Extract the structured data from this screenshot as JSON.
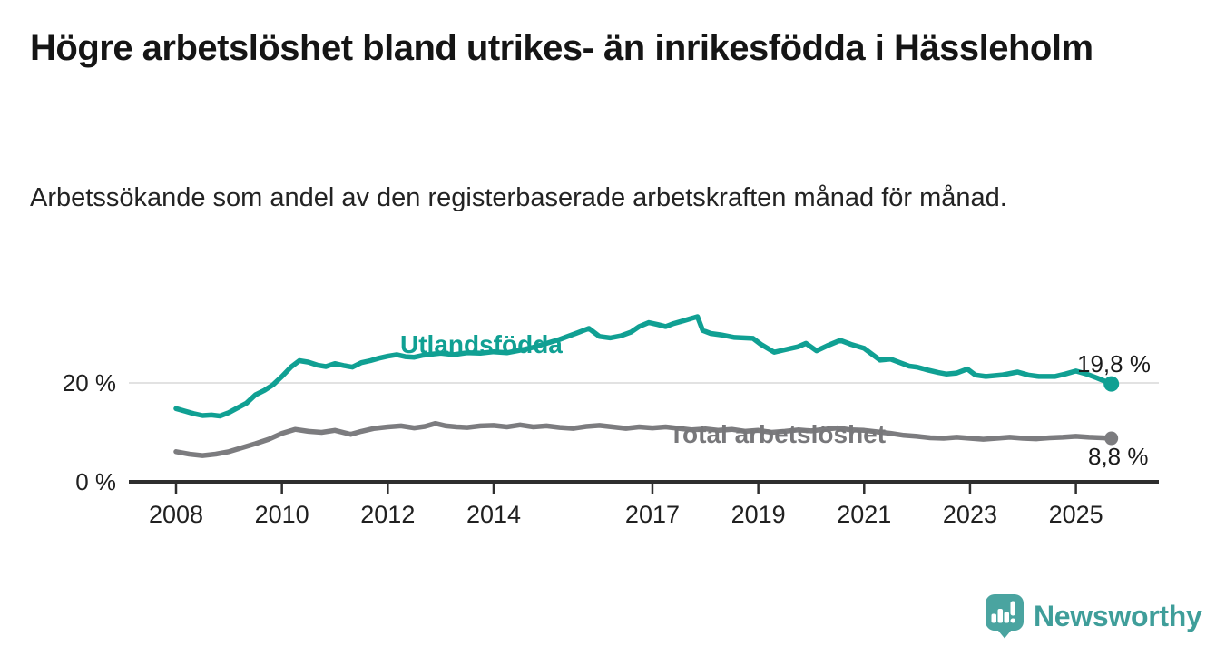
{
  "header": {
    "title": "Högre arbetslöshet bland utrikes- än inrikesfödda i Hässleholm",
    "subtitle": "Arbetssökande som andel av den registerbaserade arbetskraften månad för månad."
  },
  "chart_data": {
    "type": "line",
    "unit": "%",
    "title": "Högre arbetslöshet bland utrikes- än inrikesfödda i Hässleholm",
    "subtitle": "Arbetssökande som andel av den registerbaserade arbetskraften månad för månad.",
    "xlabel": "",
    "ylabel": "",
    "x_range": [
      2007.2,
      2026.5
    ],
    "ylim": [
      0,
      36
    ],
    "grid": "single horizontal gridline at 20 %",
    "legend_position": "inline labels next to lines",
    "x_ticks": [
      2008,
      2010,
      2012,
      2014,
      2017,
      2019,
      2021,
      2023,
      2025
    ],
    "y_ticks": [
      {
        "value": 0,
        "label": "0 %"
      },
      {
        "value": 20,
        "label": "20 %"
      }
    ],
    "axis_colors": {
      "axis_line": "#2e2e2e",
      "gridline": "#d9d9d9",
      "tick_text": "#202020"
    },
    "series": [
      {
        "name": "Utlandsfödda",
        "color": "#10a093",
        "end_value": 19.8,
        "end_label": "19,8 %",
        "points": [
          [
            2008.0,
            14.8
          ],
          [
            2008.17,
            14.3
          ],
          [
            2008.33,
            13.8
          ],
          [
            2008.5,
            13.4
          ],
          [
            2008.67,
            13.5
          ],
          [
            2008.83,
            13.3
          ],
          [
            2009.0,
            14.0
          ],
          [
            2009.17,
            15.0
          ],
          [
            2009.33,
            15.9
          ],
          [
            2009.5,
            17.6
          ],
          [
            2009.67,
            18.5
          ],
          [
            2009.83,
            19.6
          ],
          [
            2010.0,
            21.3
          ],
          [
            2010.17,
            23.2
          ],
          [
            2010.33,
            24.5
          ],
          [
            2010.5,
            24.2
          ],
          [
            2010.67,
            23.6
          ],
          [
            2010.83,
            23.3
          ],
          [
            2011.0,
            23.9
          ],
          [
            2011.17,
            23.5
          ],
          [
            2011.33,
            23.2
          ],
          [
            2011.5,
            24.1
          ],
          [
            2011.67,
            24.5
          ],
          [
            2011.83,
            25.0
          ],
          [
            2012.0,
            25.4
          ],
          [
            2012.17,
            25.7
          ],
          [
            2012.33,
            25.3
          ],
          [
            2012.5,
            25.2
          ],
          [
            2012.67,
            25.6
          ],
          [
            2012.83,
            25.8
          ],
          [
            2013.0,
            26.0
          ],
          [
            2013.25,
            25.7
          ],
          [
            2013.5,
            26.1
          ],
          [
            2013.75,
            26.0
          ],
          [
            2014.0,
            26.3
          ],
          [
            2014.25,
            26.1
          ],
          [
            2014.5,
            26.6
          ],
          [
            2014.75,
            27.2
          ],
          [
            2015.0,
            28.0
          ],
          [
            2015.25,
            28.8
          ],
          [
            2015.5,
            29.8
          ],
          [
            2015.7,
            30.6
          ],
          [
            2015.8,
            31.0
          ],
          [
            2016.0,
            29.4
          ],
          [
            2016.2,
            29.1
          ],
          [
            2016.4,
            29.5
          ],
          [
            2016.6,
            30.3
          ],
          [
            2016.75,
            31.4
          ],
          [
            2016.93,
            32.2
          ],
          [
            2017.1,
            31.8
          ],
          [
            2017.25,
            31.4
          ],
          [
            2017.4,
            32.0
          ],
          [
            2017.6,
            32.6
          ],
          [
            2017.85,
            33.4
          ],
          [
            2017.95,
            30.6
          ],
          [
            2018.1,
            30.0
          ],
          [
            2018.3,
            29.7
          ],
          [
            2018.55,
            29.2
          ],
          [
            2018.9,
            29.0
          ],
          [
            2019.05,
            27.8
          ],
          [
            2019.3,
            26.2
          ],
          [
            2019.5,
            26.7
          ],
          [
            2019.75,
            27.3
          ],
          [
            2019.9,
            28.0
          ],
          [
            2020.1,
            26.5
          ],
          [
            2020.3,
            27.5
          ],
          [
            2020.55,
            28.6
          ],
          [
            2020.75,
            27.8
          ],
          [
            2021.0,
            27.0
          ],
          [
            2021.15,
            25.8
          ],
          [
            2021.3,
            24.6
          ],
          [
            2021.5,
            24.8
          ],
          [
            2021.7,
            24.0
          ],
          [
            2021.85,
            23.4
          ],
          [
            2022.0,
            23.2
          ],
          [
            2022.2,
            22.6
          ],
          [
            2022.4,
            22.1
          ],
          [
            2022.55,
            21.8
          ],
          [
            2022.75,
            22.0
          ],
          [
            2022.95,
            22.8
          ],
          [
            2023.1,
            21.6
          ],
          [
            2023.3,
            21.3
          ],
          [
            2023.6,
            21.6
          ],
          [
            2023.9,
            22.2
          ],
          [
            2024.1,
            21.6
          ],
          [
            2024.3,
            21.3
          ],
          [
            2024.6,
            21.3
          ],
          [
            2024.8,
            21.8
          ],
          [
            2025.0,
            22.4
          ],
          [
            2025.2,
            21.8
          ],
          [
            2025.4,
            21.0
          ],
          [
            2025.67,
            19.8
          ]
        ]
      },
      {
        "name": "Total arbetslöshet",
        "color": "#7c7c7f",
        "end_value": 8.8,
        "end_label": "8,8 %",
        "points": [
          [
            2008.0,
            6.1
          ],
          [
            2008.25,
            5.6
          ],
          [
            2008.5,
            5.3
          ],
          [
            2008.75,
            5.6
          ],
          [
            2009.0,
            6.1
          ],
          [
            2009.25,
            6.9
          ],
          [
            2009.5,
            7.7
          ],
          [
            2009.75,
            8.6
          ],
          [
            2010.0,
            9.8
          ],
          [
            2010.25,
            10.6
          ],
          [
            2010.5,
            10.2
          ],
          [
            2010.75,
            10.0
          ],
          [
            2011.0,
            10.4
          ],
          [
            2011.3,
            9.6
          ],
          [
            2011.5,
            10.2
          ],
          [
            2011.75,
            10.8
          ],
          [
            2012.0,
            11.1
          ],
          [
            2012.25,
            11.3
          ],
          [
            2012.5,
            10.9
          ],
          [
            2012.7,
            11.2
          ],
          [
            2012.9,
            11.8
          ],
          [
            2013.1,
            11.3
          ],
          [
            2013.3,
            11.1
          ],
          [
            2013.5,
            11.0
          ],
          [
            2013.75,
            11.3
          ],
          [
            2014.0,
            11.4
          ],
          [
            2014.25,
            11.1
          ],
          [
            2014.5,
            11.5
          ],
          [
            2014.75,
            11.1
          ],
          [
            2015.0,
            11.3
          ],
          [
            2015.25,
            11.0
          ],
          [
            2015.5,
            10.8
          ],
          [
            2015.75,
            11.2
          ],
          [
            2016.0,
            11.4
          ],
          [
            2016.25,
            11.1
          ],
          [
            2016.5,
            10.8
          ],
          [
            2016.75,
            11.1
          ],
          [
            2017.0,
            10.9
          ],
          [
            2017.25,
            11.1
          ],
          [
            2017.5,
            10.8
          ],
          [
            2017.75,
            10.5
          ],
          [
            2018.0,
            10.7
          ],
          [
            2018.25,
            10.4
          ],
          [
            2018.5,
            10.6
          ],
          [
            2018.75,
            10.2
          ],
          [
            2019.0,
            10.4
          ],
          [
            2019.25,
            10.0
          ],
          [
            2019.5,
            10.2
          ],
          [
            2019.75,
            10.5
          ],
          [
            2020.0,
            10.3
          ],
          [
            2020.25,
            10.6
          ],
          [
            2020.5,
            10.9
          ],
          [
            2020.75,
            10.5
          ],
          [
            2021.0,
            10.4
          ],
          [
            2021.25,
            10.1
          ],
          [
            2021.5,
            9.8
          ],
          [
            2021.75,
            9.4
          ],
          [
            2022.0,
            9.2
          ],
          [
            2022.25,
            8.9
          ],
          [
            2022.5,
            8.8
          ],
          [
            2022.75,
            9.0
          ],
          [
            2023.0,
            8.8
          ],
          [
            2023.25,
            8.6
          ],
          [
            2023.5,
            8.8
          ],
          [
            2023.75,
            9.0
          ],
          [
            2024.0,
            8.8
          ],
          [
            2024.25,
            8.7
          ],
          [
            2024.5,
            8.9
          ],
          [
            2024.75,
            9.0
          ],
          [
            2025.0,
            9.2
          ],
          [
            2025.25,
            9.0
          ],
          [
            2025.5,
            8.9
          ],
          [
            2025.67,
            8.8
          ]
        ]
      }
    ]
  },
  "footer": {
    "brand": "Newsworthy",
    "logo_color": "#4aa4a0"
  }
}
